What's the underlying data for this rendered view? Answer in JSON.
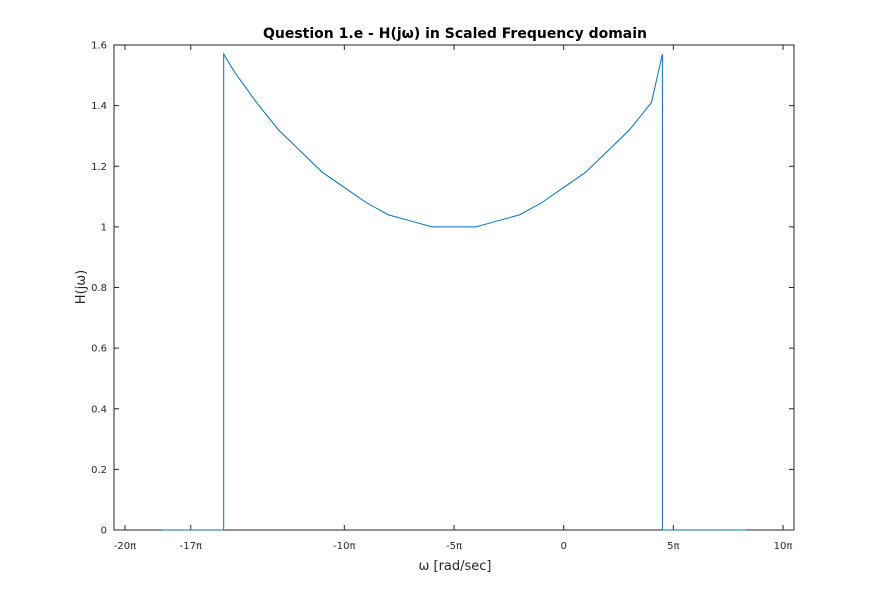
{
  "chart_data": {
    "type": "line",
    "title": "Question 1.e - H(jω) in Scaled Frequency domain",
    "xlabel": "ω [rad/sec]",
    "ylabel": "H(jω)",
    "xlim": [
      -20.5,
      10.5
    ],
    "ylim": [
      0,
      1.6
    ],
    "grid": false,
    "box": true,
    "line_color": "#0072BD",
    "x_ticks": [
      {
        "value": -20,
        "label": "-20π"
      },
      {
        "value": -17,
        "label": "-17π"
      },
      {
        "value": -10,
        "label": "-10π"
      },
      {
        "value": -5,
        "label": "-5π"
      },
      {
        "value": 0,
        "label": "0"
      },
      {
        "value": 5,
        "label": "5π"
      },
      {
        "value": 10,
        "label": "10π"
      }
    ],
    "y_ticks": [
      {
        "value": 0,
        "label": "0"
      },
      {
        "value": 0.2,
        "label": "0.2"
      },
      {
        "value": 0.4,
        "label": "0.4"
      },
      {
        "value": 0.6,
        "label": "0.6"
      },
      {
        "value": 0.8,
        "label": "0.8"
      },
      {
        "value": 1,
        "label": "1"
      },
      {
        "value": 1.2,
        "label": "1.2"
      },
      {
        "value": 1.4,
        "label": "1.4"
      },
      {
        "value": 1.6,
        "label": "1.6"
      }
    ],
    "series": [
      {
        "x": [
          -18.3,
          -15.5,
          -15.5,
          -15.0,
          -14.0,
          -13.0,
          -12.0,
          -11.0,
          -10.0,
          -9.0,
          -8.0,
          -7.0,
          -6.0,
          -5.0,
          -4.0,
          -3.0,
          -2.0,
          -1.0,
          0.0,
          1.0,
          2.0,
          3.0,
          4.0,
          4.5,
          4.5,
          8.3
        ],
        "y": [
          0,
          0,
          1.57,
          1.51,
          1.41,
          1.32,
          1.25,
          1.18,
          1.13,
          1.08,
          1.04,
          1.02,
          1.0,
          1.0,
          1.0,
          1.02,
          1.04,
          1.08,
          1.13,
          1.18,
          1.25,
          1.32,
          1.41,
          1.57,
          0,
          0
        ]
      }
    ]
  }
}
